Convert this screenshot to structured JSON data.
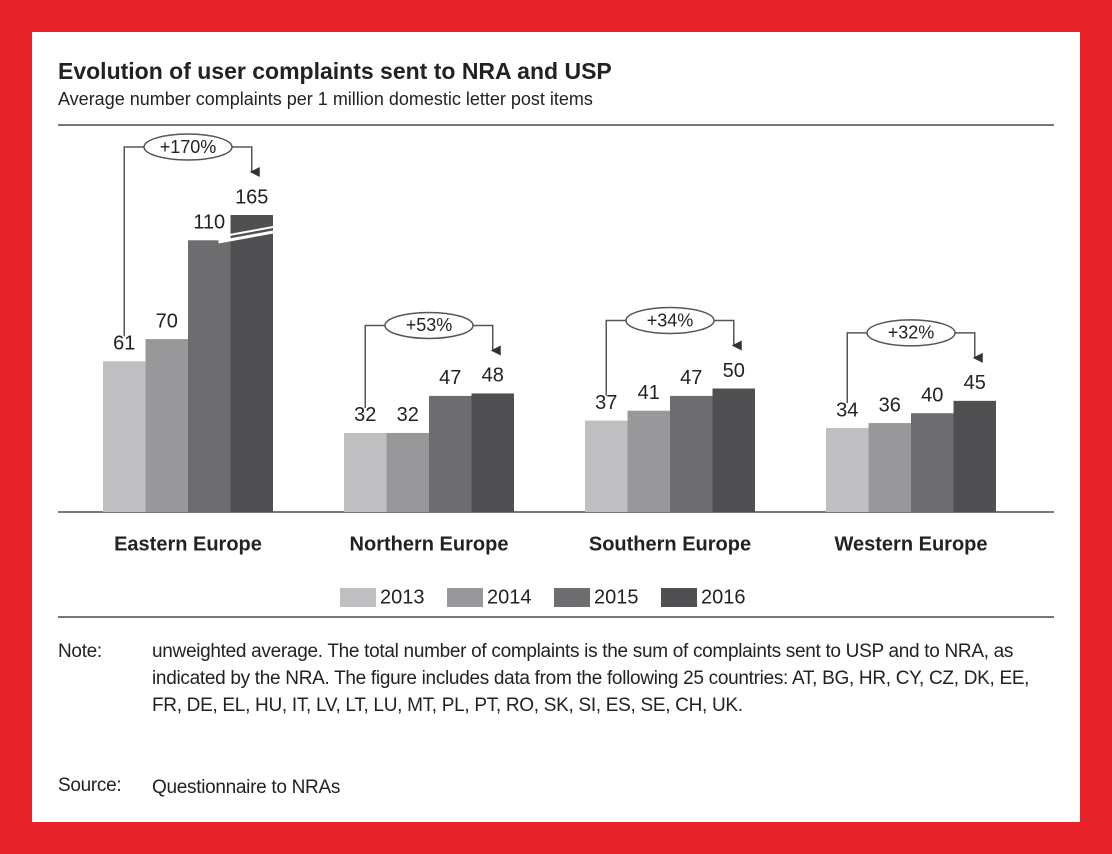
{
  "chart_data": {
    "type": "bar",
    "title": "Evolution of user complaints sent to NRA and USP",
    "subtitle": "Average number complaints per 1 million domestic letter post items",
    "categories": [
      "Eastern Europe",
      "Northern Europe",
      "Southern Europe",
      "Western Europe"
    ],
    "series": [
      {
        "name": "2013",
        "color": "#bfbfc1",
        "values": [
          61,
          32,
          37,
          34
        ]
      },
      {
        "name": "2014",
        "color": "#98989a",
        "values": [
          70,
          32,
          41,
          36
        ]
      },
      {
        "name": "2015",
        "color": "#6d6d70",
        "values": [
          110,
          47,
          47,
          40
        ]
      },
      {
        "name": "2016",
        "color": "#505052",
        "values": [
          165,
          48,
          50,
          45
        ]
      }
    ],
    "annotations": [
      "+170%",
      "+53%",
      "+34%",
      "+32%"
    ],
    "note_label": "Note:",
    "note": "unweighted average. The total number of complaints is the sum of complaints sent to USP and to NRA, as indicated by the NRA. The figure includes data from the following 25 countries: AT, BG, HR, CY, CZ, DK, EE, FR, DE, EL, HU, IT, LV, LT, LU, MT, PL, PT, RO, SK, SI, ES, SE, CH, UK.",
    "source_label": "Source:",
    "source": "Questionnaire to NRAs"
  }
}
